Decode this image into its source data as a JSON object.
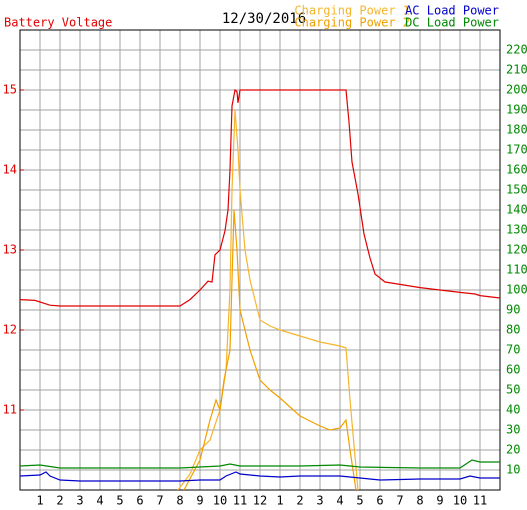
{
  "chart_data": {
    "type": "line",
    "title": "12/30/2016",
    "xlim": [
      0,
      24
    ],
    "xticks": [
      1,
      2,
      3,
      4,
      5,
      6,
      7,
      8,
      9,
      10,
      11,
      12,
      {
        "value": 13,
        "label": "1"
      },
      {
        "value": 14,
        "label": "2"
      },
      {
        "value": 15,
        "label": "3"
      },
      {
        "value": 16,
        "label": "4"
      },
      {
        "value": 17,
        "label": "5"
      },
      {
        "value": 18,
        "label": "6"
      },
      {
        "value": 19,
        "label": "7"
      },
      {
        "value": 20,
        "label": "8"
      },
      {
        "value": 21,
        "label": "9"
      },
      {
        "value": 22,
        "label": "10"
      },
      {
        "value": 23,
        "label": "11"
      }
    ],
    "ylim": [
      10,
      15.75
    ],
    "yticks": [
      11,
      12,
      13,
      14,
      15
    ],
    "y2lim": [
      0,
      230
    ],
    "y2ticks": [
      10,
      20,
      30,
      40,
      50,
      60,
      70,
      80,
      90,
      100,
      110,
      120,
      130,
      140,
      150,
      160,
      170,
      180,
      190,
      200,
      210,
      220
    ],
    "grid": true,
    "series": [
      {
        "name": "Battery Voltage",
        "color": "#e00000",
        "x": [
          0,
          0.75,
          1.5,
          2,
          4,
          6,
          7.25,
          8,
          8.5,
          9,
          9.4,
          9.6,
          9.75,
          10,
          10.25,
          10.4,
          10.5,
          10.6,
          10.75,
          10.85,
          10.9,
          11,
          13,
          16.3,
          16.45,
          16.6,
          16.9,
          17.2,
          17.5,
          17.75,
          18.25,
          19,
          20,
          21,
          22,
          22.75,
          23,
          24
        ],
        "values": [
          12.38,
          12.37,
          12.31,
          12.3,
          12.3,
          12.3,
          12.3,
          12.3,
          12.38,
          12.5,
          12.61,
          12.6,
          12.94,
          13.0,
          13.24,
          13.5,
          14.0,
          14.8,
          15.0,
          14.98,
          14.84,
          15.0,
          15.0,
          15.0,
          14.6,
          14.1,
          13.7,
          13.2,
          12.9,
          12.7,
          12.6,
          12.57,
          12.53,
          12.5,
          12.47,
          12.45,
          12.43,
          12.4
        ]
      },
      {
        "name": "Charging Power 1",
        "color": "#f5b52e",
        "axis": "y2",
        "x": [
          7.9,
          8.5,
          9,
          9.5,
          10,
          10.3,
          10.5,
          10.6,
          10.75,
          10.9,
          11,
          11.25,
          11.5,
          12,
          12.5,
          13,
          14,
          15,
          16,
          16.3,
          16.5,
          16.9
        ],
        "values": [
          0,
          8,
          20,
          25,
          40,
          60,
          100,
          150,
          190,
          170,
          150,
          120,
          105,
          85,
          82,
          80,
          77,
          74,
          72,
          71,
          45,
          0
        ]
      },
      {
        "name": "Charging Power 2",
        "color": "#f0a000",
        "axis": "y2",
        "x": [
          8.2,
          9,
          9.5,
          9.8,
          10,
          10.2,
          10.5,
          10.7,
          10.85,
          11,
          11.5,
          12,
          12.5,
          13,
          14,
          15,
          15.5,
          16,
          16.3,
          16.5,
          16.8
        ],
        "values": [
          0,
          15,
          35,
          45,
          40,
          55,
          70,
          140,
          120,
          90,
          70,
          55,
          50,
          46,
          37,
          32,
          30,
          31,
          35,
          20,
          0
        ]
      },
      {
        "name": "AC Load Power",
        "color": "#0000cc",
        "axis": "y2",
        "x": [
          0,
          1,
          1.3,
          1.5,
          2,
          3,
          6,
          8,
          9,
          10,
          10.3,
          10.8,
          11,
          12,
          13,
          14,
          16,
          17,
          18,
          20,
          22,
          22.5,
          23,
          24
        ],
        "values": [
          7,
          7.5,
          9,
          7,
          5,
          4.5,
          4.5,
          4.5,
          5,
          5,
          7,
          9,
          8,
          7,
          6.5,
          7,
          7,
          6,
          5,
          5.5,
          5.5,
          7,
          6,
          6
        ]
      },
      {
        "name": "DC Load Power",
        "color": "#008800",
        "axis": "y2",
        "x": [
          0,
          1,
          2,
          4,
          8,
          9,
          10,
          10.5,
          11,
          14,
          16,
          17,
          20,
          22,
          22.6,
          23,
          24
        ],
        "values": [
          12,
          12.5,
          11,
          11,
          11,
          11.5,
          12,
          13,
          12,
          12,
          12.5,
          11.5,
          11,
          11,
          15,
          14,
          14
        ]
      }
    ]
  }
}
